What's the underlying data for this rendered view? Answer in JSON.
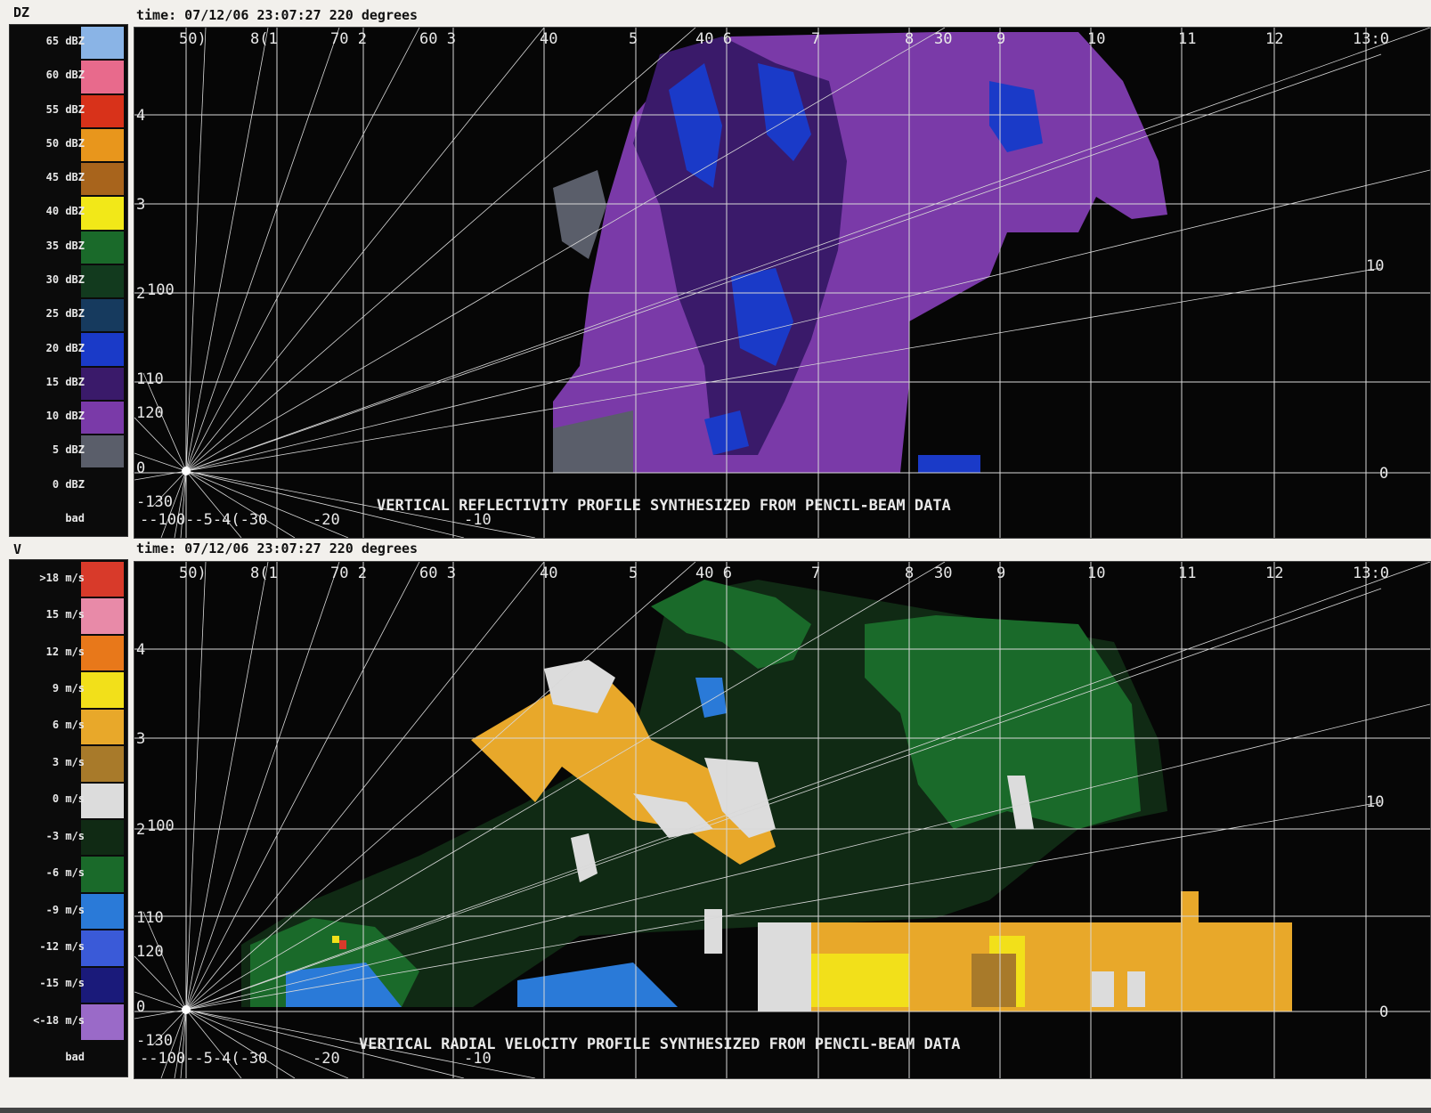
{
  "panels": [
    {
      "field": "DZ",
      "time_line": "time: 07/12/06 23:07:27 220 degrees",
      "caption": "VERTICAL REFLECTIVITY PROFILE SYNTHESIZED FROM PENCIL-BEAM DATA",
      "legend": [
        {
          "label": "65 dBZ",
          "color": "#8ab4e6"
        },
        {
          "label": "60 dBZ",
          "color": "#e86a8c"
        },
        {
          "label": "55 dBZ",
          "color": "#d8321a"
        },
        {
          "label": "50 dBZ",
          "color": "#e8961c"
        },
        {
          "label": "45 dBZ",
          "color": "#a8641c"
        },
        {
          "label": "40 dBZ",
          "color": "#f2e818"
        },
        {
          "label": "35 dBZ",
          "color": "#1a6a2a"
        },
        {
          "label": "30 dBZ",
          "color": "#123a1e"
        },
        {
          "label": "25 dBZ",
          "color": "#163a5e"
        },
        {
          "label": "20 dBZ",
          "color": "#1a3ac8"
        },
        {
          "label": "15 dBZ",
          "color": "#3a1a6a"
        },
        {
          "label": "10 dBZ",
          "color": "#7a3aa8"
        },
        {
          "label": "5 dBZ",
          "color": "#5a5e6a"
        },
        {
          "label": "0 dBZ",
          "color": "#0b0b0b"
        },
        {
          "label": "bad",
          "color": "#0b0b0b"
        }
      ]
    },
    {
      "field": "V",
      "time_line": "time: 07/12/06 23:07:27 220 degrees",
      "caption": "VERTICAL RADIAL VELOCITY PROFILE SYNTHESIZED FROM PENCIL-BEAM DATA",
      "legend": [
        {
          "label": ">18 m/s",
          "color": "#d83a2a"
        },
        {
          "label": "15 m/s",
          "color": "#e88aa8"
        },
        {
          "label": "12 m/s",
          "color": "#e8781a"
        },
        {
          "label": "9 m/s",
          "color": "#f2e01a"
        },
        {
          "label": "6 m/s",
          "color": "#e8a82a"
        },
        {
          "label": "3 m/s",
          "color": "#a87a2a"
        },
        {
          "label": "0 m/s",
          "color": "#dcdcdc"
        },
        {
          "label": "-3 m/s",
          "color": "#102a14"
        },
        {
          "label": "-6 m/s",
          "color": "#1a6a2a"
        },
        {
          "label": "-9 m/s",
          "color": "#2a7ad8"
        },
        {
          "label": "-12 m/s",
          "color": "#3a5ad8"
        },
        {
          "label": "-15 m/s",
          "color": "#1a1a7a"
        },
        {
          "label": "<-18 m/s",
          "color": "#9a6ac8"
        },
        {
          "label": "bad",
          "color": "#0b0b0b"
        }
      ]
    }
  ],
  "grid": {
    "top_labels": [
      "50)",
      "8(1",
      "70 2",
      "60 3",
      "40",
      "5",
      "40 6",
      "7",
      "8",
      "30",
      "9",
      "10",
      "11",
      "12",
      "13:0"
    ],
    "height_labels": [
      "4",
      "3",
      "2"
    ],
    "right_labels": [
      "10",
      "0"
    ],
    "left_labels": [
      "100",
      "110",
      "120",
      "0"
    ],
    "bottom_labels": [
      "-130",
      "--100--5-4(-30",
      "-20",
      "-10"
    ]
  },
  "colors": {
    "grid": "#d8d8d8",
    "panel_bg": "#060606",
    "caption": "#e8e8e8"
  }
}
